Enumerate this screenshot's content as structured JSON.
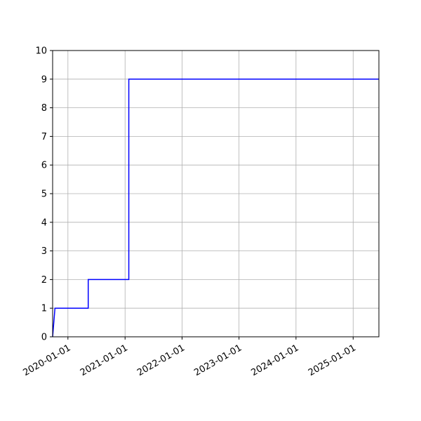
{
  "chart_data": {
    "type": "line",
    "x_type": "date",
    "step": "post",
    "grid": true,
    "xlim": [
      "2019-09-25",
      "2025-06-15"
    ],
    "ylim": [
      0,
      10
    ],
    "x_ticks": [
      "2020-01-01",
      "2021-01-01",
      "2022-01-01",
      "2023-01-01",
      "2024-01-01",
      "2025-01-01"
    ],
    "y_ticks": [
      0,
      1,
      2,
      3,
      4,
      5,
      6,
      7,
      8,
      9,
      10
    ],
    "series": [
      {
        "color": "#0000ff",
        "points": [
          {
            "x": "2019-09-25",
            "y": 0
          },
          {
            "x": "2019-10-10",
            "y": 1
          },
          {
            "x": "2020-05-10",
            "y": 2
          },
          {
            "x": "2021-01-25",
            "y": 9
          },
          {
            "x": "2025-06-15",
            "y": 9
          }
        ]
      }
    ]
  }
}
